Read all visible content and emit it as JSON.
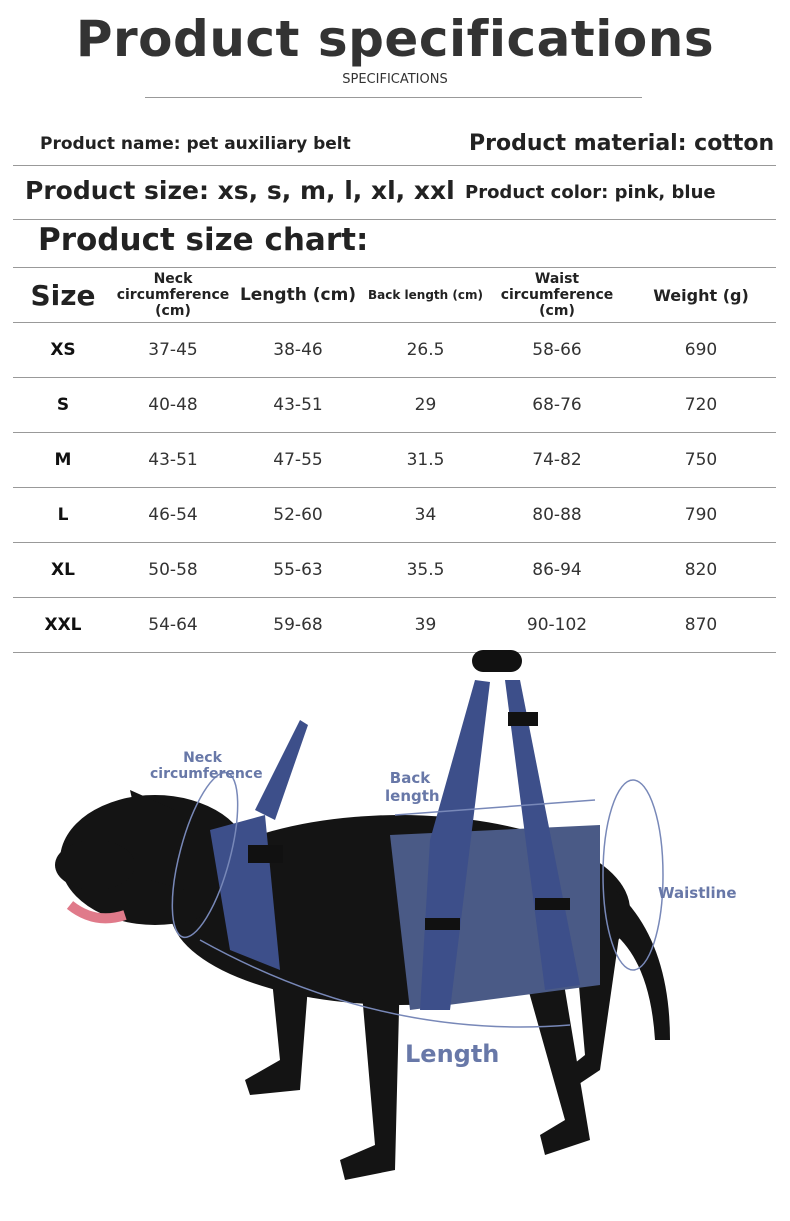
{
  "header": {
    "title": "Product specifications",
    "subtitle": "SPECIFICATIONS"
  },
  "specs": {
    "name": "Product name: pet auxiliary belt",
    "material": "Product material: cotton",
    "size": "Product size: xs, s, m, l, xl, xxl",
    "color": "Product color: pink, blue"
  },
  "size_chart": {
    "title": "Product size chart:",
    "columns": [
      "Size",
      "Neck circumference (cm)",
      "Length (cm)",
      "Back length (cm)",
      "Waist circumference (cm)",
      "Weight (g)"
    ],
    "rows": [
      [
        "XS",
        "37-45",
        "38-46",
        "26.5",
        "58-66",
        "690"
      ],
      [
        "S",
        "40-48",
        "43-51",
        "29",
        "68-76",
        "720"
      ],
      [
        "M",
        "43-51",
        "47-55",
        "31.5",
        "74-82",
        "750"
      ],
      [
        "L",
        "46-54",
        "52-60",
        "34",
        "80-88",
        "790"
      ],
      [
        "XL",
        "50-58",
        "55-63",
        "35.5",
        "86-94",
        "820"
      ],
      [
        "XXL",
        "54-64",
        "59-68",
        "39",
        "90-102",
        "870"
      ]
    ]
  },
  "diagram": {
    "labels": {
      "neck": "Neck circumference",
      "back": "Back length",
      "waist": "Waistline",
      "length": "Length"
    },
    "colors": {
      "label": "#6878a8",
      "harness": "#3d4f8a",
      "dog": "#141414"
    }
  }
}
